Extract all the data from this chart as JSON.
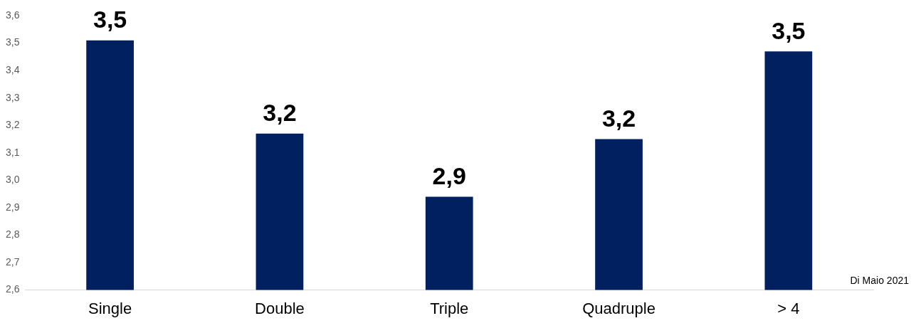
{
  "chart_data": {
    "type": "bar",
    "categories": [
      "Single",
      "Double",
      "Triple",
      "Quadruple",
      "> 4"
    ],
    "values": [
      3.51,
      3.17,
      2.94,
      3.15,
      3.47
    ],
    "value_labels": [
      "3,5",
      "3,2",
      "2,9",
      "3,2",
      "3,5"
    ],
    "color": "#002060",
    "ylim": [
      2.6,
      3.6
    ],
    "yticks": [
      {
        "value": 2.6,
        "label": "2,6"
      },
      {
        "value": 2.7,
        "label": "2,7"
      },
      {
        "value": 2.8,
        "label": "2,8"
      },
      {
        "value": 2.9,
        "label": "2,9"
      },
      {
        "value": 3.0,
        "label": "3,0"
      },
      {
        "value": 3.1,
        "label": "3,1"
      },
      {
        "value": 3.2,
        "label": "3,2"
      },
      {
        "value": 3.3,
        "label": "3,3"
      },
      {
        "value": 3.4,
        "label": "3,4"
      },
      {
        "value": 3.5,
        "label": "3,5"
      },
      {
        "value": 3.6,
        "label": "3,6"
      }
    ],
    "grid": false,
    "legend": false,
    "annotations": [
      "Di Maio 2021"
    ]
  }
}
